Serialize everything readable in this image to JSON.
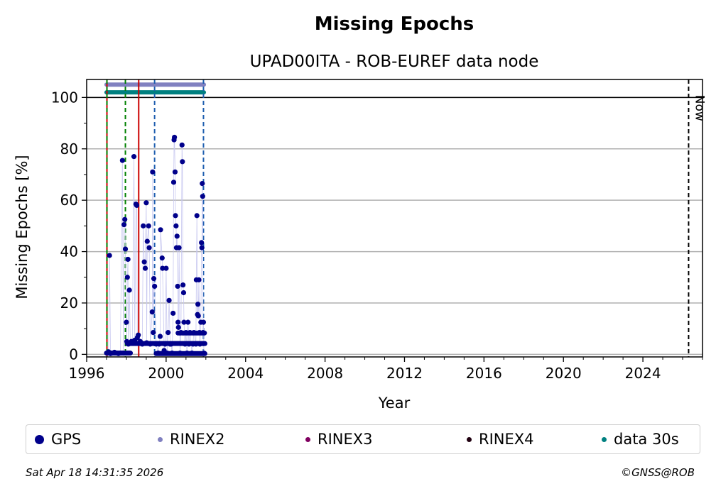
{
  "chart_data": {
    "type": "scatter",
    "title": "Missing Epochs",
    "subtitle": "UPAD00ITA - ROB-EUREF data node",
    "xlabel": "Year",
    "ylabel": "Missing Epochs [%]",
    "xlim": [
      1996,
      2027
    ],
    "ylim": [
      -1,
      107
    ],
    "x_ticks": [
      1996,
      2000,
      2004,
      2008,
      2012,
      2016,
      2020,
      2024
    ],
    "y_ticks": [
      0,
      20,
      40,
      60,
      80,
      100
    ],
    "grid": "horizontal",
    "now_label": "Now",
    "now_year": 2026.3,
    "reference_line_y": 100,
    "vlines": [
      {
        "x": 1997.02,
        "color": "#cc0000",
        "style": "solid"
      },
      {
        "x": 1997.02,
        "color": "#008000",
        "style": "dashed"
      },
      {
        "x": 1997.95,
        "color": "#008000",
        "style": "dashed"
      },
      {
        "x": 1998.62,
        "color": "#cc0000",
        "style": "solid"
      },
      {
        "x": 1999.42,
        "color": "#1f5fb0",
        "style": "dashed"
      },
      {
        "x": 2001.88,
        "color": "#1f5fb0",
        "style": "dashed"
      }
    ],
    "bands": [
      {
        "name": "RINEX2",
        "y": 105,
        "x_start": 1997.0,
        "x_end": 2001.9,
        "color": "#8080c0"
      },
      {
        "name": "data 30s",
        "y": 102,
        "x_start": 1997.0,
        "x_end": 2001.9,
        "color": "#008080"
      }
    ],
    "series": [
      {
        "name": "GPS",
        "color": "#00008b",
        "points": [
          [
            1997.05,
            0.5
          ],
          [
            1997.1,
            1
          ],
          [
            1997.15,
            38.5
          ],
          [
            1997.2,
            0.3
          ],
          [
            1997.3,
            0.5
          ],
          [
            1997.4,
            0.8
          ],
          [
            1997.5,
            0.5
          ],
          [
            1997.6,
            0.3
          ],
          [
            1997.7,
            0.5
          ],
          [
            1997.8,
            75.5
          ],
          [
            1997.85,
            0.5
          ],
          [
            1997.88,
            50.5
          ],
          [
            1997.92,
            52.5
          ],
          [
            1997.95,
            41
          ],
          [
            1998.0,
            12.5
          ],
          [
            1998.02,
            5
          ],
          [
            1998.05,
            30
          ],
          [
            1998.08,
            37
          ],
          [
            1998.1,
            4
          ],
          [
            1998.15,
            25
          ],
          [
            1998.2,
            4.5
          ],
          [
            1998.25,
            5
          ],
          [
            1998.3,
            4.5
          ],
          [
            1998.38,
            77
          ],
          [
            1998.42,
            5.5
          ],
          [
            1998.48,
            58.5
          ],
          [
            1998.52,
            58
          ],
          [
            1998.55,
            6.5
          ],
          [
            1998.6,
            7.5
          ],
          [
            1998.65,
            4.5
          ],
          [
            1998.7,
            5
          ],
          [
            1998.8,
            4
          ],
          [
            1998.85,
            50
          ],
          [
            1998.9,
            36
          ],
          [
            1998.95,
            33.5
          ],
          [
            1999.0,
            59
          ],
          [
            1999.02,
            4.5
          ],
          [
            1999.05,
            44
          ],
          [
            1999.12,
            50
          ],
          [
            1999.15,
            41.5
          ],
          [
            1999.2,
            4
          ],
          [
            1999.3,
            16.5
          ],
          [
            1999.32,
            71
          ],
          [
            1999.35,
            8.5
          ],
          [
            1999.38,
            29.5
          ],
          [
            1999.42,
            26.5
          ],
          [
            1999.5,
            4
          ],
          [
            1999.6,
            0.5
          ],
          [
            1999.65,
            4
          ],
          [
            1999.7,
            7
          ],
          [
            1999.72,
            48.5
          ],
          [
            1999.8,
            37.5
          ],
          [
            1999.82,
            33.5
          ],
          [
            1999.9,
            1.5
          ],
          [
            1999.95,
            4
          ],
          [
            2000.0,
            33.5
          ],
          [
            2000.05,
            0.5
          ],
          [
            2000.1,
            8.5
          ],
          [
            2000.15,
            21
          ],
          [
            2000.2,
            4
          ],
          [
            2000.25,
            4
          ],
          [
            2000.3,
            0.5
          ],
          [
            2000.35,
            16
          ],
          [
            2000.38,
            67
          ],
          [
            2000.4,
            83.5
          ],
          [
            2000.42,
            84.5
          ],
          [
            2000.45,
            71
          ],
          [
            2000.47,
            54
          ],
          [
            2000.5,
            50
          ],
          [
            2000.52,
            41.5
          ],
          [
            2000.55,
            46
          ],
          [
            2000.58,
            26.5
          ],
          [
            2000.6,
            12.5
          ],
          [
            2000.62,
            10.5
          ],
          [
            2000.65,
            41.5
          ],
          [
            2000.7,
            0.5
          ],
          [
            2000.75,
            8.5
          ],
          [
            2000.8,
            81.5
          ],
          [
            2000.82,
            75
          ],
          [
            2000.85,
            27
          ],
          [
            2000.88,
            24
          ],
          [
            2000.9,
            12.5
          ],
          [
            2000.95,
            4
          ],
          [
            2001.0,
            8.5
          ],
          [
            2001.05,
            0.5
          ],
          [
            2001.1,
            12.5
          ],
          [
            2001.15,
            4
          ],
          [
            2001.2,
            8.5
          ],
          [
            2001.3,
            0.5
          ],
          [
            2001.35,
            4
          ],
          [
            2001.4,
            8.5
          ],
          [
            2001.5,
            4
          ],
          [
            2001.52,
            29
          ],
          [
            2001.55,
            54
          ],
          [
            2001.58,
            15.5
          ],
          [
            2001.6,
            19.5
          ],
          [
            2001.62,
            15
          ],
          [
            2001.65,
            29
          ],
          [
            2001.68,
            8.5
          ],
          [
            2001.7,
            4
          ],
          [
            2001.75,
            12.5
          ],
          [
            2001.78,
            43.5
          ],
          [
            2001.8,
            41.5
          ],
          [
            2001.82,
            66.5
          ],
          [
            2001.84,
            61.5
          ],
          [
            2001.86,
            8.5
          ],
          [
            2001.88,
            12.5
          ],
          [
            2001.9,
            0.5
          ]
        ]
      },
      {
        "name": "RINEX2",
        "color": "#8080c0",
        "points": []
      },
      {
        "name": "RINEX3",
        "color": "#800060",
        "points": []
      },
      {
        "name": "RINEX4",
        "color": "#200010",
        "points": []
      },
      {
        "name": "data 30s",
        "color": "#008080",
        "points": []
      }
    ]
  },
  "legend": [
    {
      "label": "GPS",
      "color": "#00008b"
    },
    {
      "label": "RINEX2",
      "color": "#8080c0"
    },
    {
      "label": "RINEX3",
      "color": "#800060"
    },
    {
      "label": "RINEX4",
      "color": "#200010"
    },
    {
      "label": "data 30s",
      "color": "#008080"
    }
  ],
  "footer": {
    "timestamp": "Sat Apr 18 14:31:35 2026",
    "copyright": "©GNSS@ROB"
  }
}
